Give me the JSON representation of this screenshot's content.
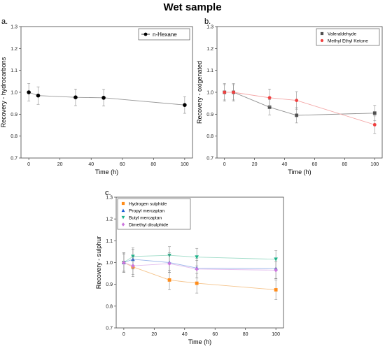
{
  "title": "Wet sample",
  "chart_data": [
    {
      "type": "line",
      "panel_label": "a.",
      "xlabel": "Time (h)",
      "ylabel": "Recovery - hydrocarbons",
      "xlim": [
        -5,
        105
      ],
      "ylim": [
        0.7,
        1.3
      ],
      "xticks": [
        0,
        20,
        40,
        60,
        80,
        100
      ],
      "yticks": [
        0.7,
        0.8,
        0.9,
        1.0,
        1.1,
        1.2,
        1.3
      ],
      "legend_position": "top-right",
      "series": [
        {
          "name": "n-Hexane",
          "color": "#000000",
          "line_color": "#999999",
          "marker": "circle",
          "x": [
            0,
            6,
            30,
            48,
            100
          ],
          "y": [
            1.0,
            0.985,
            0.977,
            0.975,
            0.942
          ],
          "err": [
            0.04,
            0.04,
            0.038,
            0.038,
            0.038
          ]
        }
      ]
    },
    {
      "type": "line",
      "panel_label": "b.",
      "xlabel": "Time (h)",
      "ylabel": "Recovery - oxigenated",
      "xlim": [
        -5,
        105
      ],
      "ylim": [
        0.7,
        1.3
      ],
      "xticks": [
        0,
        20,
        40,
        60,
        80,
        100
      ],
      "yticks": [
        0.7,
        0.8,
        0.9,
        1.0,
        1.1,
        1.2,
        1.3
      ],
      "legend_position": "top-right",
      "series": [
        {
          "name": "Valeraldehyde",
          "color": "#505050",
          "line_color": "#909090",
          "marker": "square",
          "x": [
            0,
            6,
            30,
            48,
            100
          ],
          "y": [
            1.0,
            1.0,
            0.932,
            0.895,
            0.905
          ],
          "err": [
            0.035,
            0.035,
            0.035,
            0.035,
            0.035
          ]
        },
        {
          "name": "Methyl Ethyl Ketone",
          "color": "#f04040",
          "line_color": "#f4a8a8",
          "marker": "circle",
          "x": [
            0,
            6,
            30,
            48,
            100
          ],
          "y": [
            1.0,
            1.0,
            0.975,
            0.963,
            0.852
          ],
          "err": [
            0.04,
            0.04,
            0.04,
            0.04,
            0.04
          ]
        }
      ]
    },
    {
      "type": "line",
      "panel_label": "c.",
      "xlabel": "Time (h)",
      "ylabel": "Recovery - sulphur",
      "xlim": [
        -5,
        105
      ],
      "ylim": [
        0.7,
        1.3
      ],
      "xticks": [
        0,
        20,
        40,
        60,
        80,
        100
      ],
      "yticks": [
        0.7,
        0.8,
        0.9,
        1.0,
        1.1,
        1.2,
        1.3
      ],
      "legend_position": "top-left",
      "series": [
        {
          "name": "Hydrogen sulphide",
          "color": "#ff8c1a",
          "line_color": "#f5c48c",
          "marker": "square",
          "x": [
            0,
            6,
            30,
            48,
            100
          ],
          "y": [
            1.0,
            0.98,
            0.92,
            0.905,
            0.875
          ],
          "err": [
            0.045,
            0.045,
            0.045,
            0.045,
            0.045
          ]
        },
        {
          "name": "Propyl mercaptan",
          "color": "#1f5fd6",
          "line_color": "#9db8ea",
          "marker": "triangle-up",
          "x": [
            0,
            6,
            30,
            48,
            100
          ],
          "y": [
            1.0,
            1.015,
            1.0,
            0.975,
            0.972
          ],
          "err": [
            0.045,
            0.045,
            0.045,
            0.045,
            0.045
          ]
        },
        {
          "name": "Butyl mercaptan",
          "color": "#1fb38a",
          "line_color": "#9fdcc8",
          "marker": "triangle-down",
          "x": [
            0,
            6,
            30,
            48,
            100
          ],
          "y": [
            1.0,
            1.028,
            1.033,
            1.025,
            1.015
          ],
          "err": [
            0.04,
            0.04,
            0.04,
            0.04,
            0.04
          ]
        },
        {
          "name": "Dimethyl disulphide",
          "color": "#cc77dd",
          "line_color": "#e3bdee",
          "marker": "diamond",
          "x": [
            0,
            6,
            30,
            48,
            100
          ],
          "y": [
            1.0,
            0.985,
            0.995,
            0.97,
            0.965
          ],
          "err": [
            0.04,
            0.04,
            0.04,
            0.04,
            0.04
          ]
        }
      ]
    }
  ]
}
